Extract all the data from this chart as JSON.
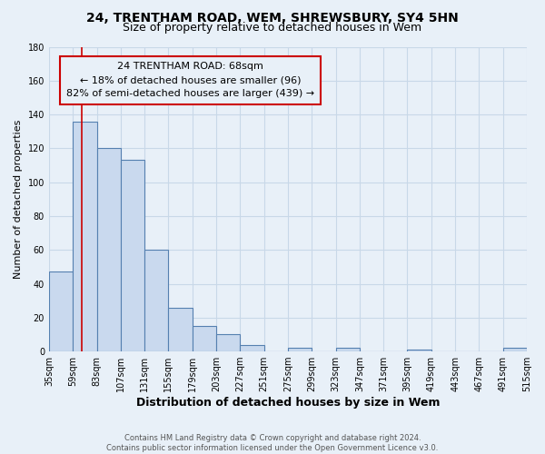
{
  "title": "24, TRENTHAM ROAD, WEM, SHREWSBURY, SY4 5HN",
  "subtitle": "Size of property relative to detached houses in Wem",
  "xlabel": "Distribution of detached houses by size in Wem",
  "ylabel": "Number of detached properties",
  "footer_lines": [
    "Contains HM Land Registry data © Crown copyright and database right 2024.",
    "Contains public sector information licensed under the Open Government Licence v3.0."
  ],
  "bin_edges": [
    35,
    59,
    83,
    107,
    131,
    155,
    179,
    203,
    227,
    251,
    275,
    299,
    323,
    347,
    371,
    395,
    419,
    443,
    467,
    491,
    515
  ],
  "bin_counts": [
    47,
    136,
    120,
    113,
    60,
    26,
    15,
    10,
    4,
    0,
    2,
    0,
    2,
    0,
    0,
    1,
    0,
    0,
    0,
    2
  ],
  "bar_facecolor": "#c9d9ee",
  "bar_edgecolor": "#5580b0",
  "grid_color": "#c8d8e8",
  "background_color": "#e8f0f8",
  "annotation_box_edgecolor": "#cc0000",
  "annotation_line_color": "#cc0000",
  "property_line_x": 68,
  "annotation_text_line1": "24 TRENTHAM ROAD: 68sqm",
  "annotation_text_line2": "← 18% of detached houses are smaller (96)",
  "annotation_text_line3": "82% of semi-detached houses are larger (439) →",
  "ylim": [
    0,
    180
  ],
  "yticks": [
    0,
    20,
    40,
    60,
    80,
    100,
    120,
    140,
    160,
    180
  ],
  "xtick_labels": [
    "35sqm",
    "59sqm",
    "83sqm",
    "107sqm",
    "131sqm",
    "155sqm",
    "179sqm",
    "203sqm",
    "227sqm",
    "251sqm",
    "275sqm",
    "299sqm",
    "323sqm",
    "347sqm",
    "371sqm",
    "395sqm",
    "419sqm",
    "443sqm",
    "467sqm",
    "491sqm",
    "515sqm"
  ]
}
